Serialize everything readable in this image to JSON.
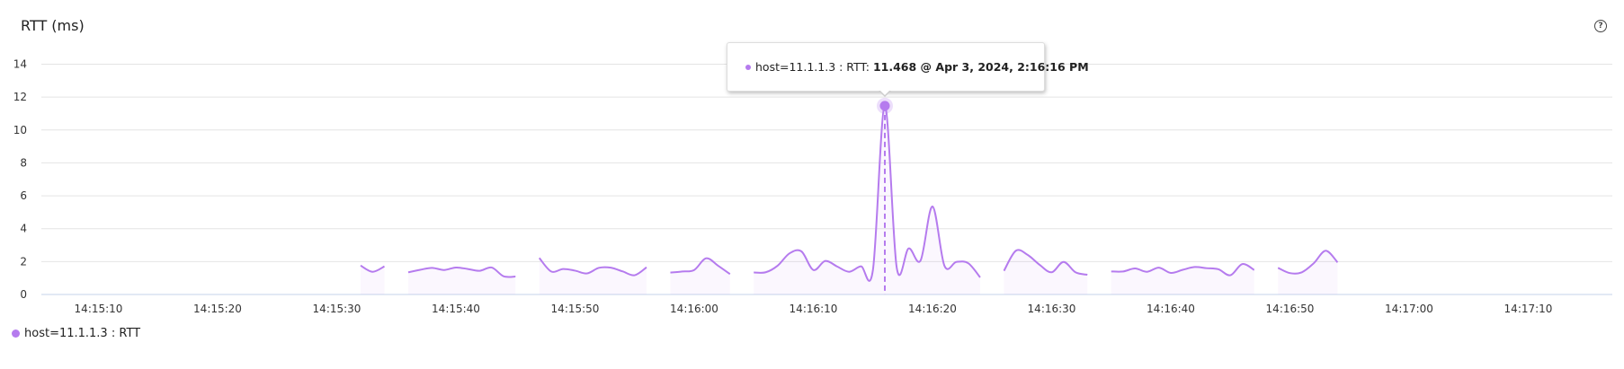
{
  "chart_data": {
    "type": "line",
    "title": "RTT (ms)",
    "help_icon": "question-circle-icon",
    "ylim": [
      0,
      14
    ],
    "yticks": [
      0,
      2,
      4,
      6,
      8,
      10,
      12,
      14
    ],
    "xlim": [
      "14:15:06",
      "14:17:18"
    ],
    "xticks": [
      "14:15:10",
      "14:15:20",
      "14:15:30",
      "14:15:40",
      "14:15:50",
      "14:16:00",
      "14:16:10",
      "14:16:20",
      "14:16:30",
      "14:16:40",
      "14:16:50",
      "14:17:00",
      "14:17:10"
    ],
    "grid": true,
    "legend_position": "bottom-left",
    "series": [
      {
        "name": "host=11.1.1.3 : RTT",
        "color": "#b57bee",
        "points": [
          [
            "14:15:32",
            1.76
          ],
          [
            "14:15:33",
            1.38
          ],
          [
            "14:15:34",
            1.71
          ],
          [
            "14:15:35",
            null
          ],
          [
            "14:15:36",
            1.35
          ],
          [
            "14:15:37",
            1.5
          ],
          [
            "14:15:38",
            1.62
          ],
          [
            "14:15:39",
            1.49
          ],
          [
            "14:15:40",
            1.64
          ],
          [
            "14:15:41",
            1.55
          ],
          [
            "14:15:42",
            1.44
          ],
          [
            "14:15:43",
            1.64
          ],
          [
            "14:15:44",
            1.11
          ],
          [
            "14:15:45",
            1.09
          ],
          [
            "14:15:46",
            null
          ],
          [
            "14:15:47",
            2.22
          ],
          [
            "14:15:48",
            1.4
          ],
          [
            "14:15:49",
            1.55
          ],
          [
            "14:15:50",
            1.45
          ],
          [
            "14:15:51",
            1.28
          ],
          [
            "14:15:52",
            1.62
          ],
          [
            "14:15:53",
            1.63
          ],
          [
            "14:15:54",
            1.4
          ],
          [
            "14:15:55",
            1.17
          ],
          [
            "14:15:56",
            1.65
          ],
          [
            "14:15:57",
            null
          ],
          [
            "14:15:58",
            1.33
          ],
          [
            "14:15:59",
            1.4
          ],
          [
            "14:16:00",
            1.49
          ],
          [
            "14:16:01",
            2.2
          ],
          [
            "14:16:02",
            1.75
          ],
          [
            "14:16:03",
            1.24
          ],
          [
            "14:16:04",
            null
          ],
          [
            "14:16:05",
            1.34
          ],
          [
            "14:16:06",
            1.35
          ],
          [
            "14:16:07",
            1.75
          ],
          [
            "14:16:08",
            2.5
          ],
          [
            "14:16:09",
            2.62
          ],
          [
            "14:16:10",
            1.49
          ],
          [
            "14:16:11",
            2.04
          ],
          [
            "14:16:12",
            1.7
          ],
          [
            "14:16:13",
            1.38
          ],
          [
            "14:16:14",
            1.71
          ],
          [
            "14:16:15",
            1.49
          ],
          [
            "14:16:16",
            11.468
          ],
          [
            "14:16:17",
            1.62
          ],
          [
            "14:16:18",
            2.8
          ],
          [
            "14:16:19",
            2.07
          ],
          [
            "14:16:20",
            5.35
          ],
          [
            "14:16:21",
            1.75
          ],
          [
            "14:16:22",
            1.98
          ],
          [
            "14:16:23",
            1.9
          ],
          [
            "14:16:24",
            1.04
          ],
          [
            "14:16:25",
            null
          ],
          [
            "14:16:26",
            1.44
          ],
          [
            "14:16:27",
            2.66
          ],
          [
            "14:16:28",
            2.4
          ],
          [
            "14:16:29",
            1.8
          ],
          [
            "14:16:30",
            1.35
          ],
          [
            "14:16:31",
            1.98
          ],
          [
            "14:16:32",
            1.35
          ],
          [
            "14:16:33",
            1.2
          ],
          [
            "14:16:34",
            null
          ],
          [
            "14:16:35",
            1.4
          ],
          [
            "14:16:36",
            1.4
          ],
          [
            "14:16:37",
            1.58
          ],
          [
            "14:16:38",
            1.38
          ],
          [
            "14:16:39",
            1.63
          ],
          [
            "14:16:40",
            1.31
          ],
          [
            "14:16:41",
            1.5
          ],
          [
            "14:16:42",
            1.67
          ],
          [
            "14:16:43",
            1.6
          ],
          [
            "14:16:44",
            1.53
          ],
          [
            "14:16:45",
            1.17
          ],
          [
            "14:16:46",
            1.85
          ],
          [
            "14:16:47",
            1.49
          ],
          [
            "14:16:48",
            null
          ],
          [
            "14:16:49",
            1.62
          ],
          [
            "14:16:50",
            1.3
          ],
          [
            "14:16:51",
            1.35
          ],
          [
            "14:16:52",
            1.9
          ],
          [
            "14:16:53",
            2.66
          ],
          [
            "14:16:54",
            1.95
          ]
        ]
      }
    ],
    "highlight": {
      "time": "14:16:16",
      "value": 11.468
    }
  },
  "tooltip": {
    "series_label": "host=11.1.1.3 : RTT: ",
    "value_text": "11.468 @ Apr 3, 2024, 2:16:16 PM"
  },
  "legend": {
    "label": "host=11.1.1.3 : RTT",
    "color": "#b57bee"
  }
}
